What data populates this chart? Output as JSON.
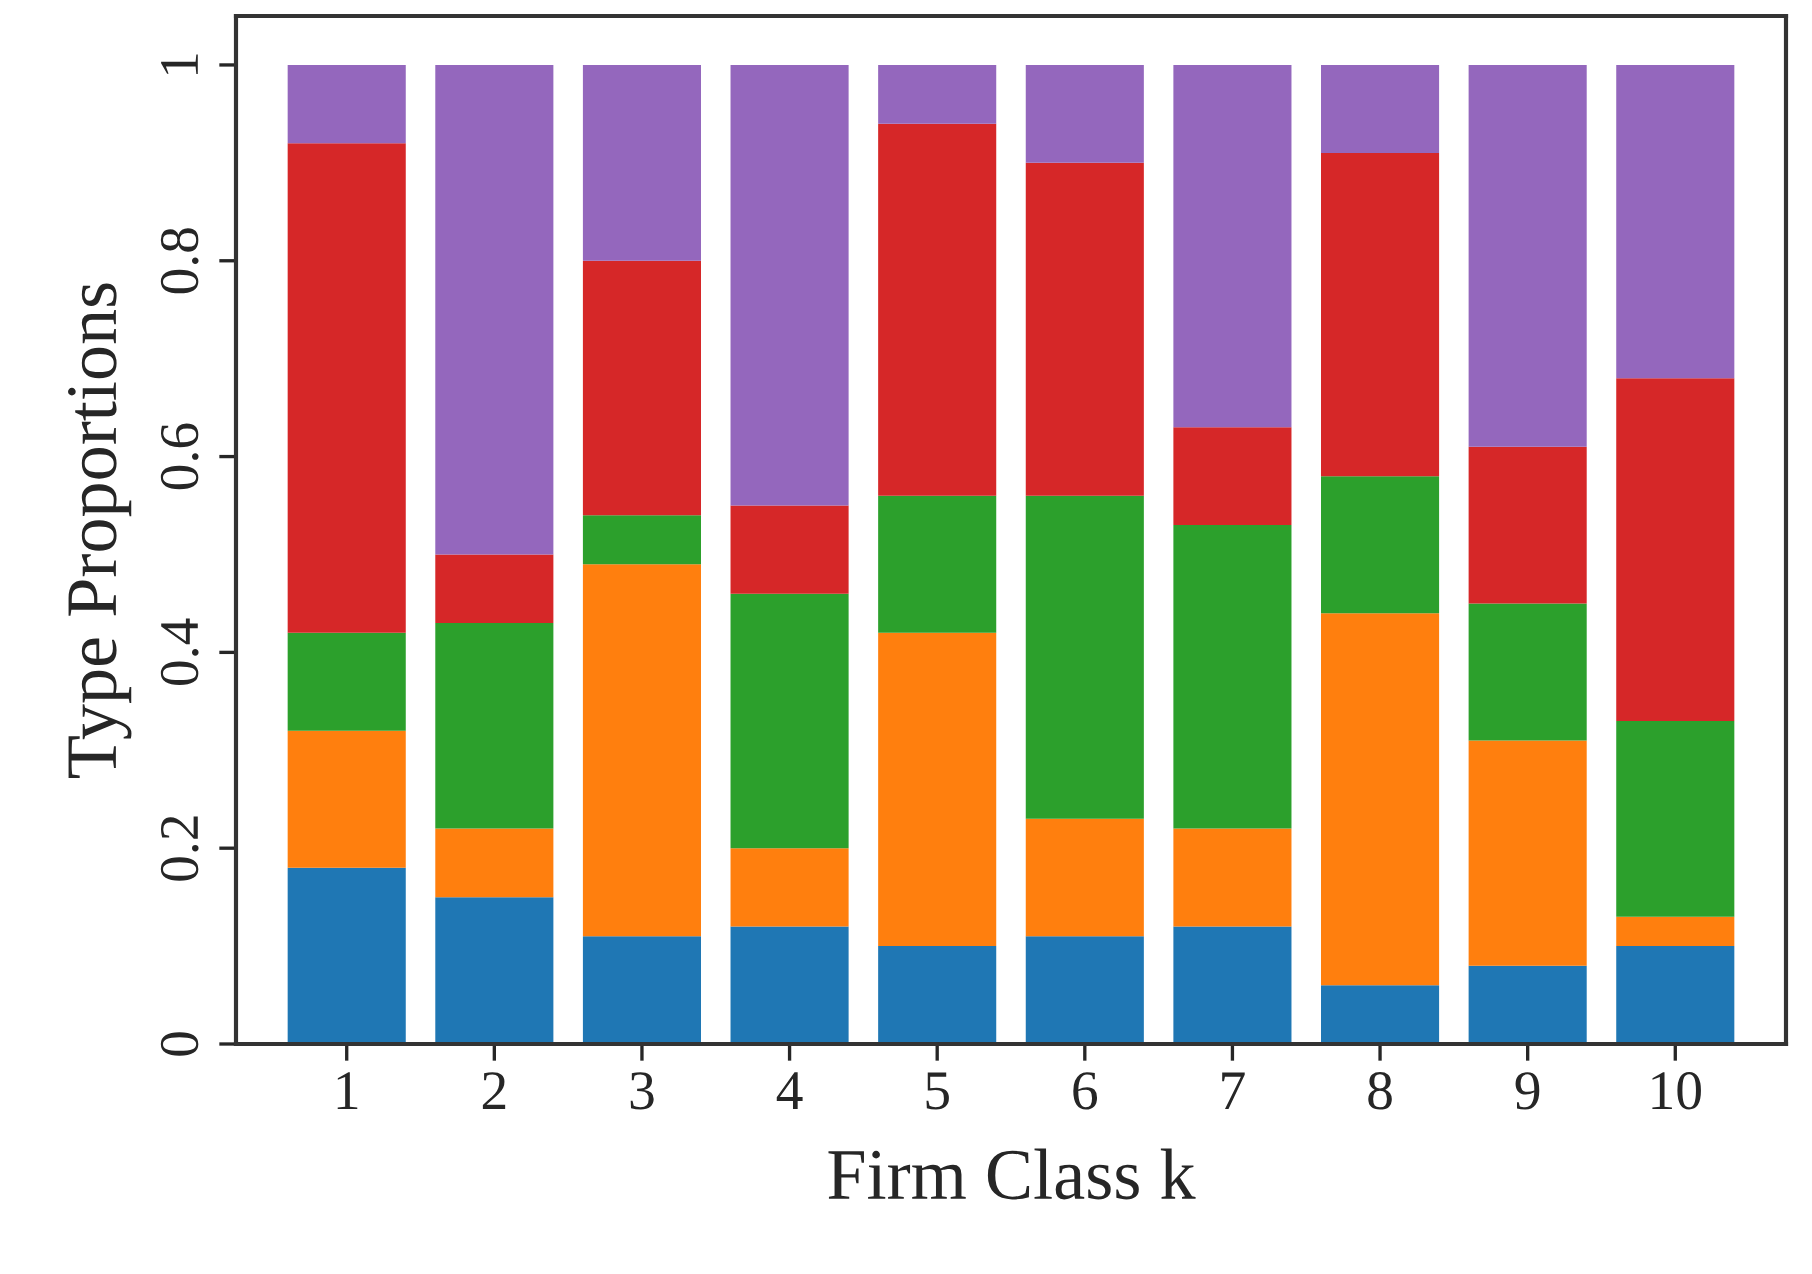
{
  "chart_data": {
    "type": "bar",
    "stacked": true,
    "xlabel": "Firm Class k",
    "ylabel": "Type Proportions",
    "categories": [
      "1",
      "2",
      "3",
      "4",
      "5",
      "6",
      "7",
      "8",
      "9",
      "10"
    ],
    "series": [
      {
        "color": "#1f77b4",
        "values": [
          0.18,
          0.15,
          0.11,
          0.12,
          0.1,
          0.11,
          0.12,
          0.06,
          0.08,
          0.1
        ]
      },
      {
        "color": "#ff7f0e",
        "values": [
          0.14,
          0.07,
          0.38,
          0.08,
          0.32,
          0.12,
          0.1,
          0.38,
          0.23,
          0.03
        ]
      },
      {
        "color": "#2ca02c",
        "values": [
          0.1,
          0.21,
          0.05,
          0.26,
          0.14,
          0.33,
          0.31,
          0.14,
          0.14,
          0.2
        ]
      },
      {
        "color": "#d62728",
        "values": [
          0.5,
          0.07,
          0.26,
          0.09,
          0.38,
          0.34,
          0.1,
          0.33,
          0.16,
          0.35
        ]
      },
      {
        "color": "#9467bd",
        "values": [
          0.08,
          0.5,
          0.2,
          0.45,
          0.06,
          0.1,
          0.37,
          0.09,
          0.39,
          0.32
        ]
      }
    ],
    "ylim": [
      0,
      1.05
    ],
    "yticks": [
      0,
      0.2,
      0.4,
      0.6,
      0.8,
      1
    ],
    "grid": false
  }
}
